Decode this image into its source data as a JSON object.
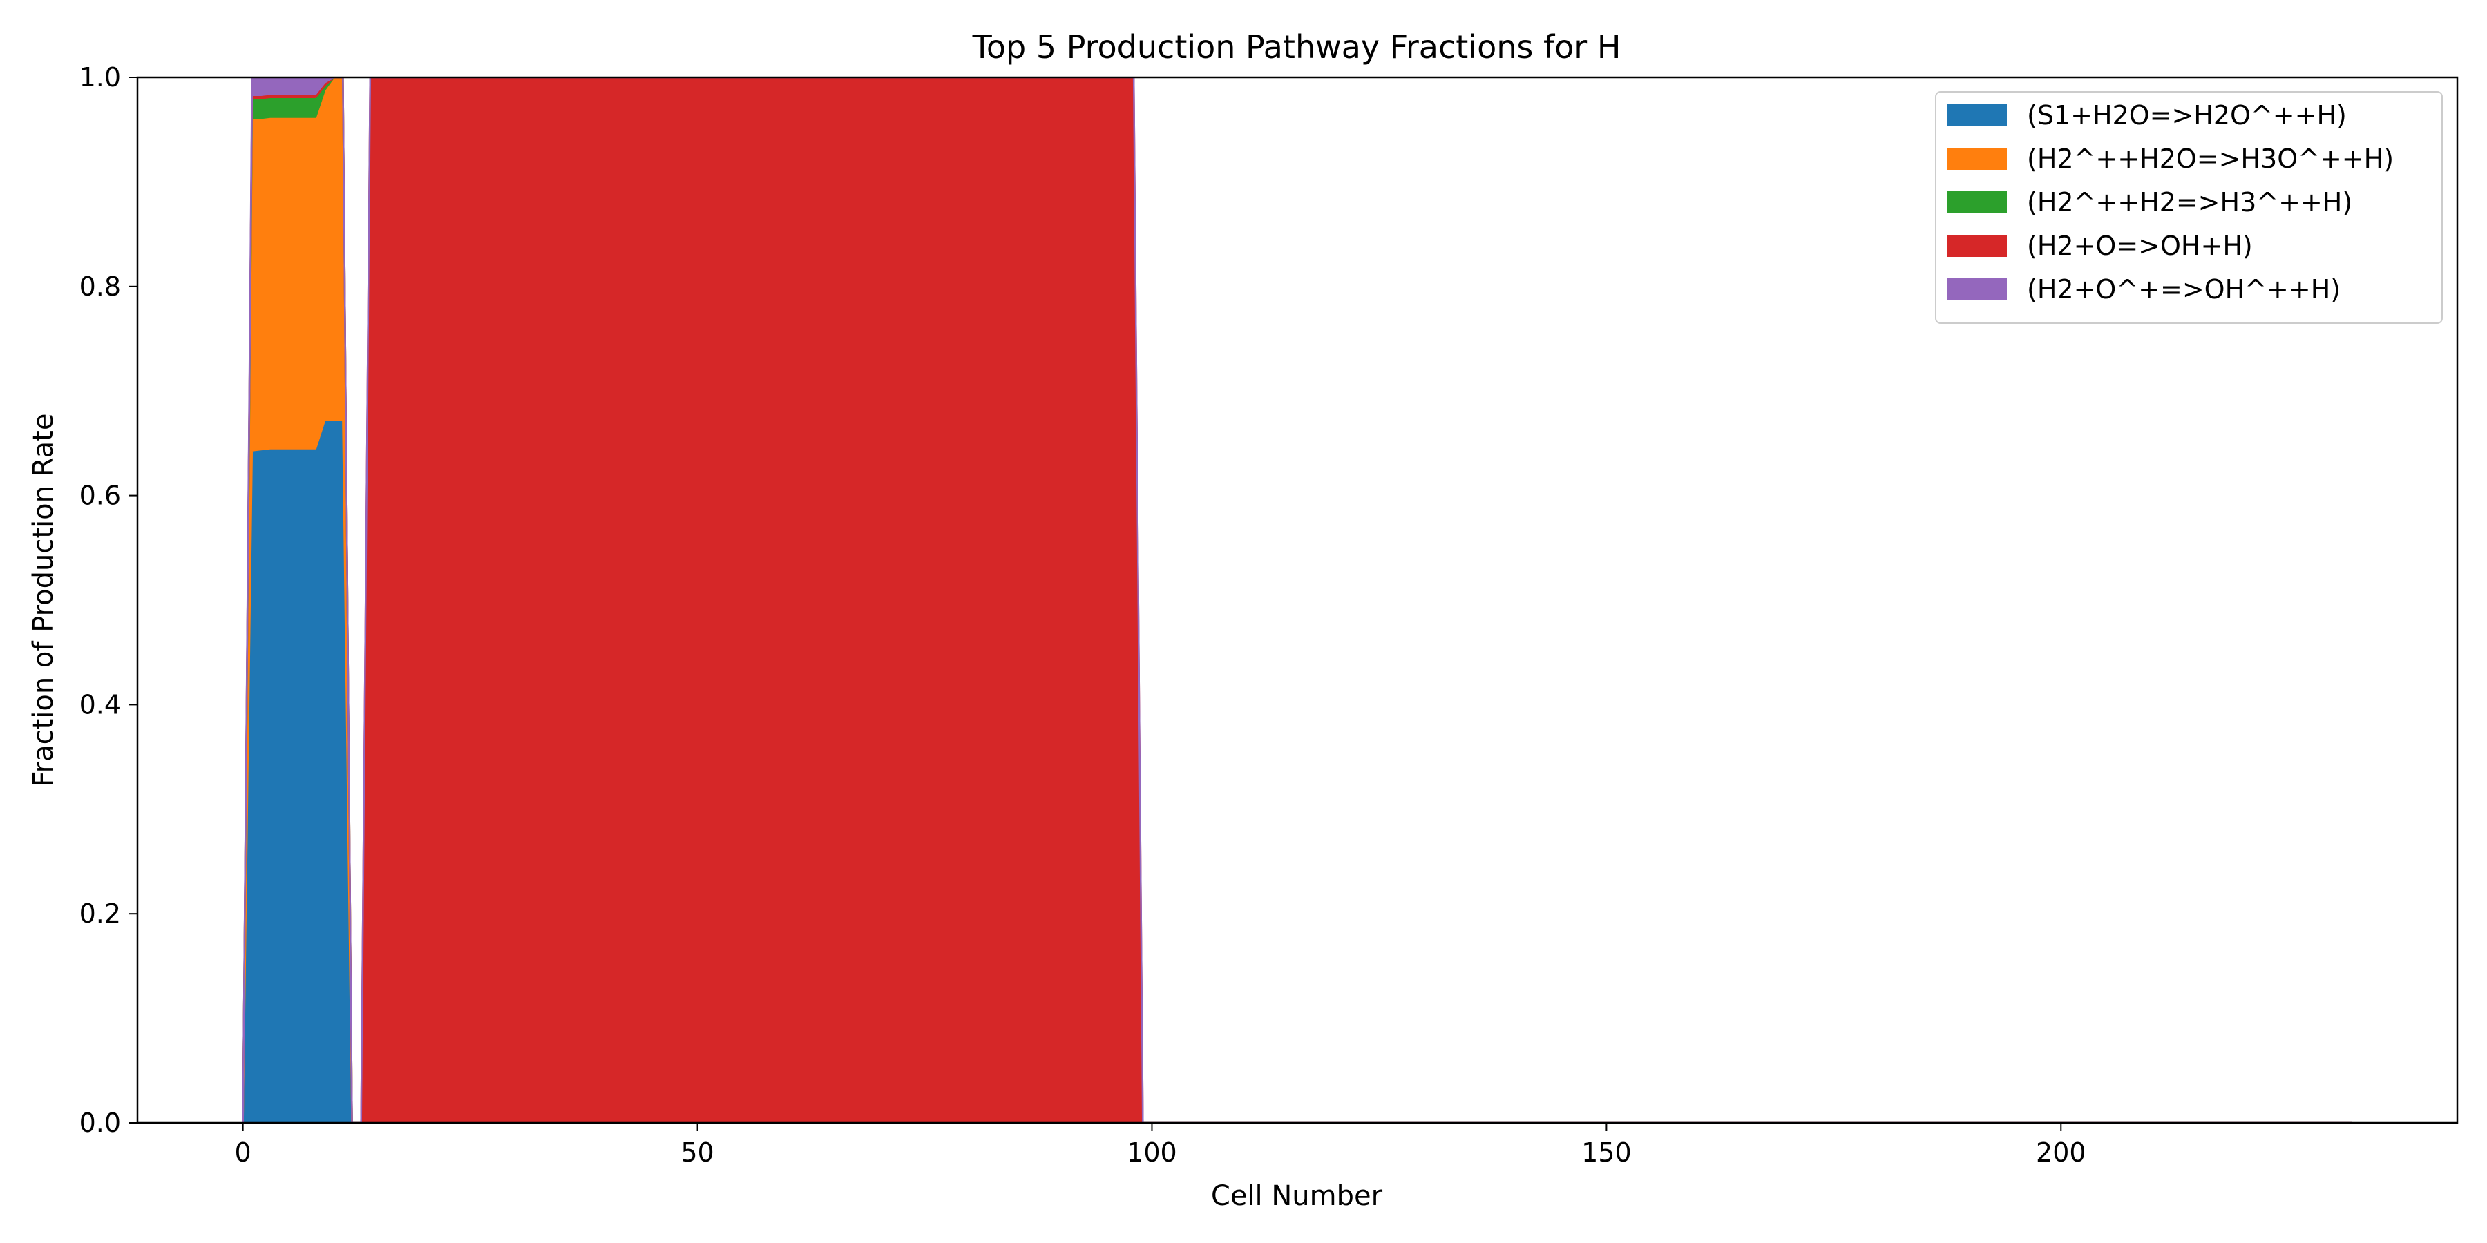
{
  "chart_data": {
    "type": "area",
    "stacked": true,
    "title": "Top 5 Production Pathway Fractions for H",
    "xlabel": "Cell Number",
    "ylabel": "Fraction of Production Rate",
    "xlim": [
      -11.6,
      243.6
    ],
    "ylim": [
      0.0,
      1.0
    ],
    "xticks": [
      0,
      50,
      100,
      150,
      200
    ],
    "xtick_labels": [
      "0",
      "50",
      "100",
      "150",
      "200"
    ],
    "yticks": [
      0.0,
      0.2,
      0.4,
      0.6,
      0.8,
      1.0
    ],
    "ytick_labels": [
      "0.0",
      "0.2",
      "0.4",
      "0.6",
      "0.8",
      "1.0"
    ],
    "grid": false,
    "legend_position": "upper right",
    "x": [
      0,
      1,
      2,
      3,
      4,
      5,
      6,
      7,
      8,
      9,
      10,
      11,
      12,
      13,
      14,
      15,
      98,
      99,
      232
    ],
    "series": [
      {
        "name": "(S1+H2O=>H2O^++H)",
        "color": "#1f77b4",
        "values": [
          0,
          0.643,
          0.644,
          0.645,
          0.645,
          0.645,
          0.645,
          0.645,
          0.645,
          0.672,
          0.672,
          0.672,
          0,
          0,
          0,
          0,
          0,
          0,
          0
        ]
      },
      {
        "name": "(H2^++H2O=>H3O^++H)",
        "color": "#ff7f0e",
        "values": [
          0,
          0.318,
          0.317,
          0.317,
          0.317,
          0.317,
          0.317,
          0.317,
          0.317,
          0.316,
          0.328,
          0.328,
          0,
          0,
          0,
          0,
          0,
          0,
          0
        ]
      },
      {
        "name": "(H2^++H2=>H3^++H)",
        "color": "#2ca02c",
        "values": [
          0,
          0.019,
          0.019,
          0.019,
          0.019,
          0.019,
          0.019,
          0.019,
          0.019,
          0.004,
          0,
          0,
          0,
          0,
          0,
          0,
          0,
          0,
          0
        ]
      },
      {
        "name": "(H2+O=>OH+H)",
        "color": "#d62728",
        "values": [
          0,
          0.003,
          0.003,
          0.003,
          0.003,
          0.003,
          0.003,
          0.003,
          0.003,
          0.003,
          0,
          0,
          0,
          0,
          1.0,
          1.0,
          1.0,
          0,
          0
        ]
      },
      {
        "name": "(H2+O^+=>OH^++H)",
        "color": "#9467bd",
        "values": [
          0,
          0.017,
          0.017,
          0.016,
          0.016,
          0.016,
          0.016,
          0.016,
          0.016,
          0.005,
          0,
          0,
          0,
          0,
          0,
          0,
          0,
          0,
          0
        ]
      }
    ]
  }
}
